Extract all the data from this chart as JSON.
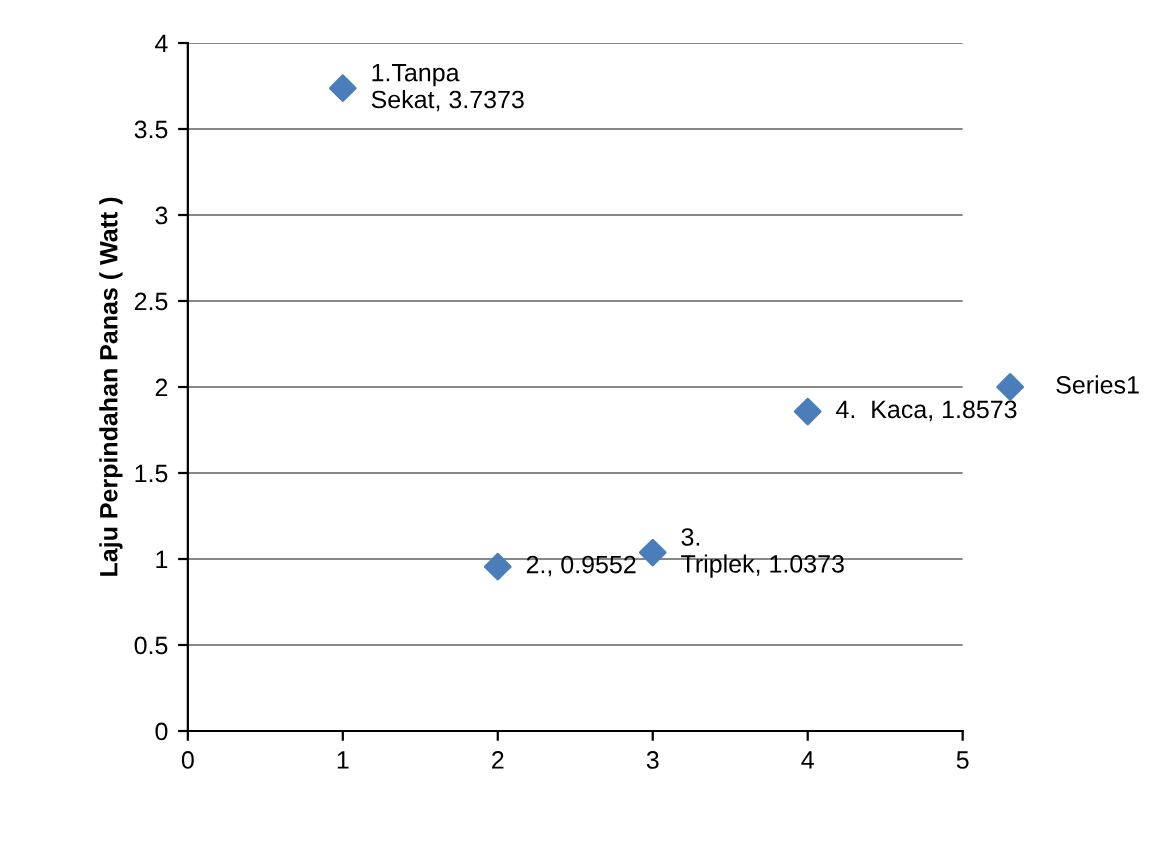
{
  "chart_data": {
    "type": "scatter",
    "ylabel": "Laju Perpindahan Panas ( Watt )",
    "x": [
      1,
      2,
      3,
      4
    ],
    "series": [
      {
        "name": "Series1",
        "color": "#4a7ebb",
        "values": [
          3.7373,
          0.9552,
          1.0373,
          1.8573
        ],
        "value_labels": [
          "1.Tanpa\nSekat, 3.7373",
          "2., 0.9552",
          "3.\nTriplek, 1.0373",
          "4.  Kaca, 1.8573"
        ]
      }
    ],
    "xlim": [
      0,
      5
    ],
    "xticks": [
      0,
      1,
      2,
      3,
      4,
      5
    ],
    "ylim": [
      0,
      4
    ],
    "yticks": [
      0,
      0.5,
      1,
      1.5,
      2,
      2.5,
      3,
      3.5,
      4
    ],
    "grid": "y",
    "legend": "right",
    "marker": "diamond"
  }
}
